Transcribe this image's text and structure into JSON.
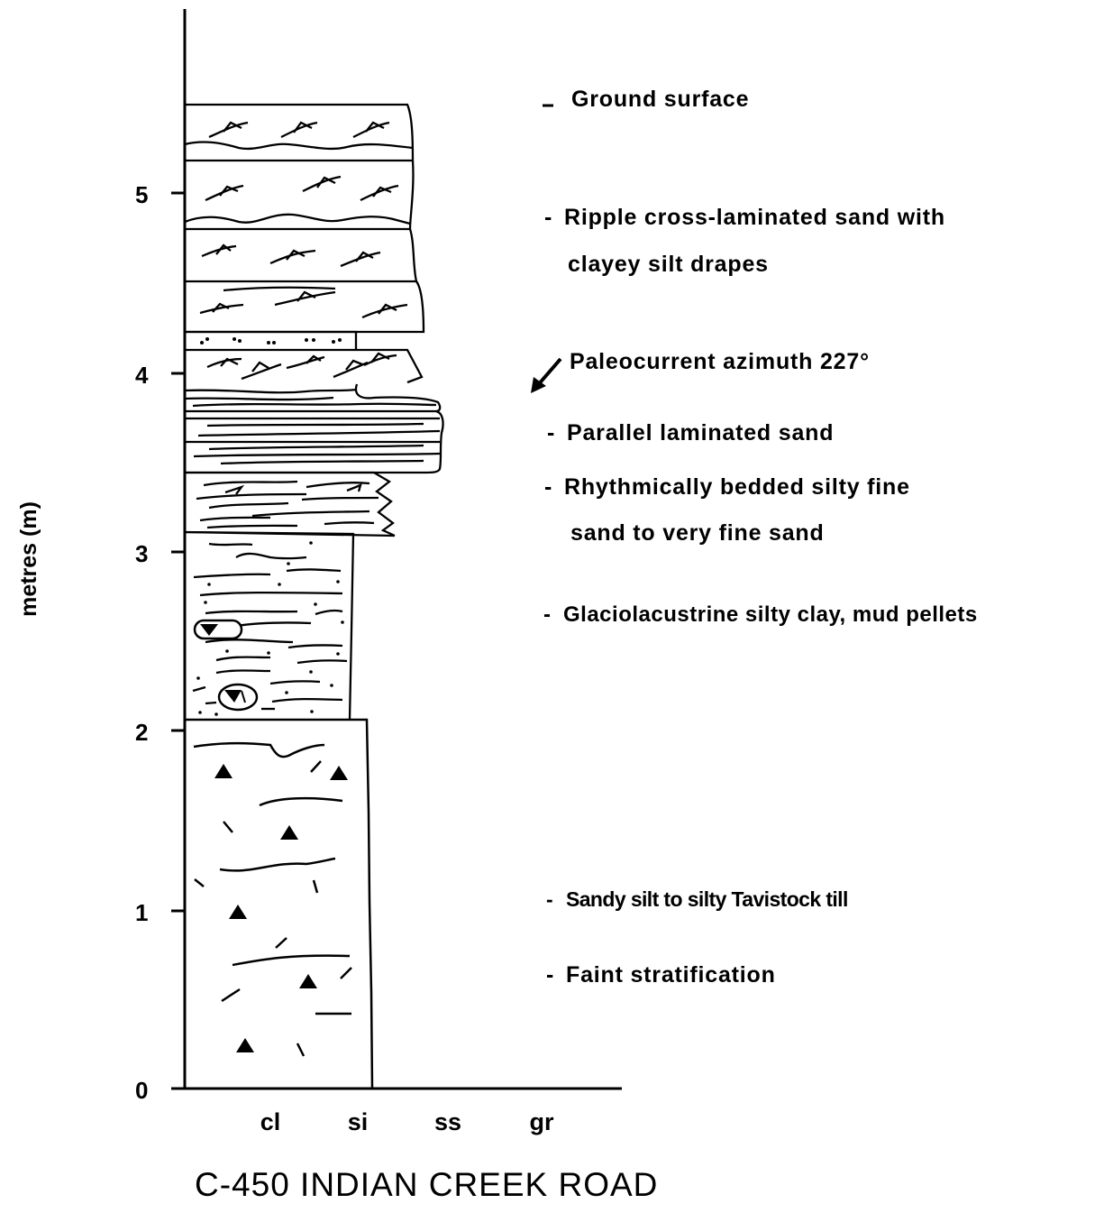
{
  "diagram": {
    "y_axis": {
      "label": "metres (m)",
      "ticks": [
        "0",
        "1",
        "2",
        "3",
        "4",
        "5"
      ]
    },
    "grain_size_labels": [
      "cl",
      "si",
      "ss",
      "gr"
    ],
    "descriptions": {
      "ground_surface": "Ground surface",
      "ripple_line1": "Ripple cross-laminated sand with",
      "ripple_line2": "clayey silt drapes",
      "paleocurrent": "Paleocurrent azimuth 227°",
      "parallel": "Parallel laminated sand",
      "rhythmic_line1": "Rhythmically bedded silty fine",
      "rhythmic_line2": "sand to very fine sand",
      "glacio": "Glaciolacustrine silty clay, mud pellets",
      "till": "Sandy silt to silty Tavistock till",
      "faint": "Faint stratification"
    },
    "caption": "C-450 INDIAN CREEK ROAD"
  }
}
